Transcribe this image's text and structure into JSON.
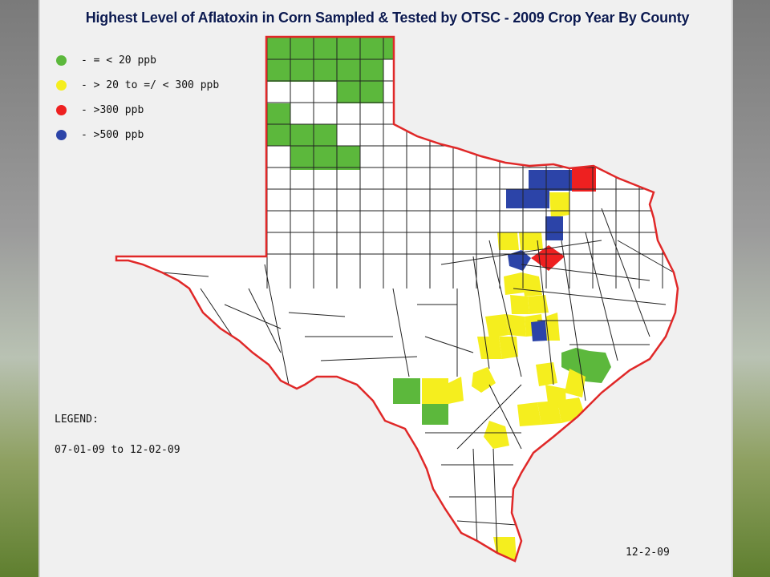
{
  "title": "Highest Level of Aflatoxin in Corn Sampled & Tested by OTSC - 2009 Crop Year By County",
  "legend": {
    "items": [
      {
        "label": "- = < 20 ppb",
        "color": "#5cb83c"
      },
      {
        "label": "- > 20 to =/ < 300 ppb",
        "color": "#f5ee1e"
      },
      {
        "label": "- >300 ppb",
        "color": "#ee2020"
      },
      {
        "label": "- >500 ppb",
        "color": "#2c44a8"
      }
    ],
    "heading": "LEGEND:",
    "date_range": "07-01-09 to 12-02-09"
  },
  "date_stamp": "12-2-09",
  "colors": {
    "border": "#e02828",
    "county_line": "#222222",
    "land": "#ffffff",
    "frame": "#f0f0f0"
  }
}
